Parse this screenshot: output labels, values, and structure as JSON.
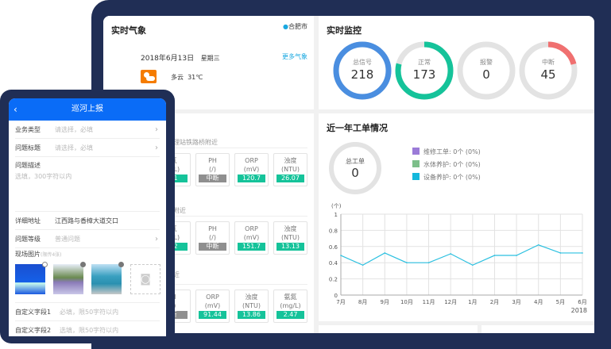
{
  "weather": {
    "title": "实时气象",
    "city": "合肥市",
    "date": "2018年6月13日",
    "weekday": "星期三",
    "more": "更多气象",
    "condition": "多云",
    "temp": "31℃",
    "icon": "partly-cloudy-icon"
  },
  "monitor": {
    "title": "实时监控",
    "rings": [
      {
        "label": "总信号",
        "value": "218",
        "color": "#4a8ee0",
        "fraction": 1
      },
      {
        "label": "正常",
        "value": "173",
        "color": "#15c39a",
        "fraction": 0.79
      },
      {
        "label": "报警",
        "value": "0",
        "color": "#e3e3e3",
        "fraction": 0
      },
      {
        "label": "中断",
        "value": "45",
        "color": "#f07070",
        "fraction": 0.21
      }
    ]
  },
  "stations": [
    {
      "name": "处理站铁路桥附近",
      "cards": [
        {
          "h": "氮",
          "u": "g/L)",
          "v": "71"
        },
        {
          "h": "PH",
          "u": "(/)",
          "v": "中断",
          "off": true
        },
        {
          "h": "ORP",
          "u": "(mV)",
          "v": "120.7"
        },
        {
          "h": "浊度",
          "u": "(NTU)",
          "v": "26.07"
        }
      ]
    },
    {
      "name": "桥附近",
      "cards": [
        {
          "h": "氮",
          "u": "g/L)",
          "v": "42"
        },
        {
          "h": "PH",
          "u": "(/)",
          "v": "中断",
          "off": true
        },
        {
          "h": "ORP",
          "u": "(mV)",
          "v": "151.7"
        },
        {
          "h": "浊度",
          "u": "(NTU)",
          "v": "13.13"
        }
      ]
    },
    {
      "name": "闸",
      "name2": "附近",
      "cards": [
        {
          "h": "H",
          "u": "/)",
          "v": "断",
          "off": true
        },
        {
          "h": "ORP",
          "u": "(mV)",
          "v": "91.44"
        },
        {
          "h": "浊度",
          "u": "(NTU)",
          "v": "13.86"
        },
        {
          "h": "氨氮",
          "u": "(mg/L)",
          "v": "2.47"
        }
      ]
    }
  ],
  "workorders": {
    "title": "近一年工单情况",
    "total_label": "总工单",
    "total": "0",
    "legend": [
      {
        "label": "维修工单:  0个 (0%)",
        "color": "#9b7bd8"
      },
      {
        "label": "水体养护:  0个 (0%)",
        "color": "#7dbf8a"
      },
      {
        "label": "设备养护:  0个 (0%)",
        "color": "#15b8dc"
      }
    ]
  },
  "chart_data": {
    "type": "line",
    "ylabel": "(个)",
    "ylim": [
      0,
      1
    ],
    "yticks": [
      "0",
      "0.2",
      "0.4",
      "0.6",
      "0.8",
      "1"
    ],
    "categories": [
      "7月",
      "8月",
      "9月",
      "10月",
      "11月",
      "12月",
      "1月",
      "2月",
      "3月",
      "4月",
      "5月",
      "6月"
    ],
    "values": [
      0.49,
      0.37,
      0.52,
      0.4,
      0.4,
      0.51,
      0.37,
      0.49,
      0.49,
      0.62,
      0.52,
      0.52
    ],
    "year_label": "2018",
    "color": "#2bc0e0",
    "grid": true
  },
  "phone": {
    "title": "巡河上报",
    "rows": [
      {
        "k": "业务类型",
        "v": "请选择，必填",
        "chev": true
      },
      {
        "k": "问题标题",
        "v": "请选择，必填",
        "chev": true
      }
    ],
    "desc_label": "问题描述",
    "desc_placeholder": "选填，300字符以内",
    "address_label": "详细地址",
    "address": "江西路与香樟大道交口",
    "level_label": "问题等级",
    "level": "普通问题",
    "photos_label": "现场图片",
    "photos_hint": "(限传4张)",
    "custom1_label": "自定义字段1",
    "custom1": "必填，限50字符以内",
    "custom2_label": "自定义字段2",
    "custom2": "选填，限50字符以内"
  }
}
